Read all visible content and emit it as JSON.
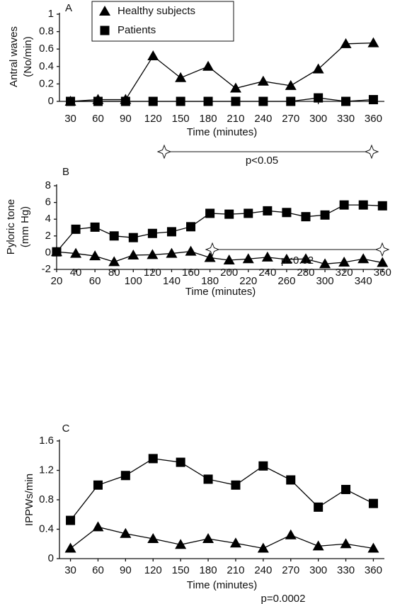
{
  "chart_data": [
    {
      "type": "line",
      "panel_label": "A",
      "ylabel": [
        "Antral waves",
        "(No/min)"
      ],
      "xlabel": "Time (minutes)",
      "x": [
        30,
        60,
        90,
        120,
        150,
        180,
        210,
        240,
        270,
        300,
        330,
        360
      ],
      "xlim": [
        18,
        372
      ],
      "xticks": [
        30,
        60,
        90,
        120,
        150,
        180,
        210,
        240,
        270,
        300,
        330,
        360
      ],
      "ylim": [
        0,
        1
      ],
      "yticks": [
        0,
        0.2,
        0.4,
        0.6,
        0.8,
        1
      ],
      "series": [
        {
          "name": "Healthy subjects",
          "marker": "triangle",
          "color": "#000000",
          "values": [
            0,
            0.02,
            0.02,
            0.52,
            0.27,
            0.4,
            0.15,
            0.23,
            0.18,
            0.37,
            0.66,
            0.67
          ]
        },
        {
          "name": "Patients",
          "marker": "square",
          "color": "#000000",
          "values": [
            0,
            0,
            0,
            0,
            0,
            0,
            0,
            0,
            0,
            0.04,
            0,
            0.02
          ]
        }
      ],
      "annotation": "p<0.05",
      "bracket": true
    },
    {
      "type": "line",
      "panel_label": "B",
      "ylabel": [
        "Pyloric tone",
        "(mm Hg)"
      ],
      "xlabel": "Time (minutes)",
      "x": [
        20,
        40,
        60,
        80,
        100,
        120,
        140,
        160,
        180,
        200,
        220,
        240,
        260,
        280,
        300,
        320,
        340,
        360
      ],
      "xlim": [
        20,
        362
      ],
      "xticks": [
        20,
        40,
        60,
        80,
        100,
        120,
        140,
        160,
        180,
        200,
        220,
        240,
        260,
        280,
        300,
        320,
        340,
        360
      ],
      "ylim": [
        -2,
        8
      ],
      "yticks": [
        -2,
        0,
        2,
        4,
        6,
        8
      ],
      "series": [
        {
          "marker": "triangle",
          "color": "#000000",
          "values": [
            0.1,
            -0.1,
            -0.4,
            -1.1,
            -0.3,
            -0.25,
            -0.1,
            0.15,
            -0.6,
            -0.9,
            -0.75,
            -0.55,
            -0.8,
            -0.75,
            -1.35,
            -1.15,
            -0.75,
            -1.2
          ]
        },
        {
          "marker": "square",
          "color": "#000000",
          "values": [
            0.1,
            2.8,
            3.05,
            2,
            1.8,
            2.3,
            2.5,
            3.1,
            4.7,
            4.6,
            4.7,
            5,
            4.8,
            4.3,
            4.5,
            5.7,
            5.7,
            5.6
          ]
        }
      ],
      "annotation": "p<0.02",
      "bracket": true
    },
    {
      "type": "line",
      "panel_label": "C",
      "ylabel": [
        "IPPWs/min"
      ],
      "xlabel": "Time (minutes)",
      "x": [
        30,
        60,
        90,
        120,
        150,
        180,
        210,
        240,
        270,
        300,
        330,
        360
      ],
      "xlim": [
        18,
        372
      ],
      "xticks": [
        30,
        60,
        90,
        120,
        150,
        180,
        210,
        240,
        270,
        300,
        330,
        360
      ],
      "ylim": [
        0,
        1.6
      ],
      "yticks": [
        0,
        0.4,
        0.8,
        1.2,
        1.6
      ],
      "series": [
        {
          "marker": "triangle",
          "color": "#000000",
          "values": [
            0.14,
            0.43,
            0.34,
            0.27,
            0.19,
            0.27,
            0.21,
            0.14,
            0.32,
            0.17,
            0.2,
            0.14
          ]
        },
        {
          "marker": "square",
          "color": "#000000",
          "values": [
            0.52,
            1.0,
            1.13,
            1.36,
            1.31,
            1.08,
            1.0,
            1.26,
            1.07,
            0.7,
            0.94,
            0.75
          ]
        }
      ],
      "annotation": "p=0.0002",
      "bracket": false
    }
  ]
}
